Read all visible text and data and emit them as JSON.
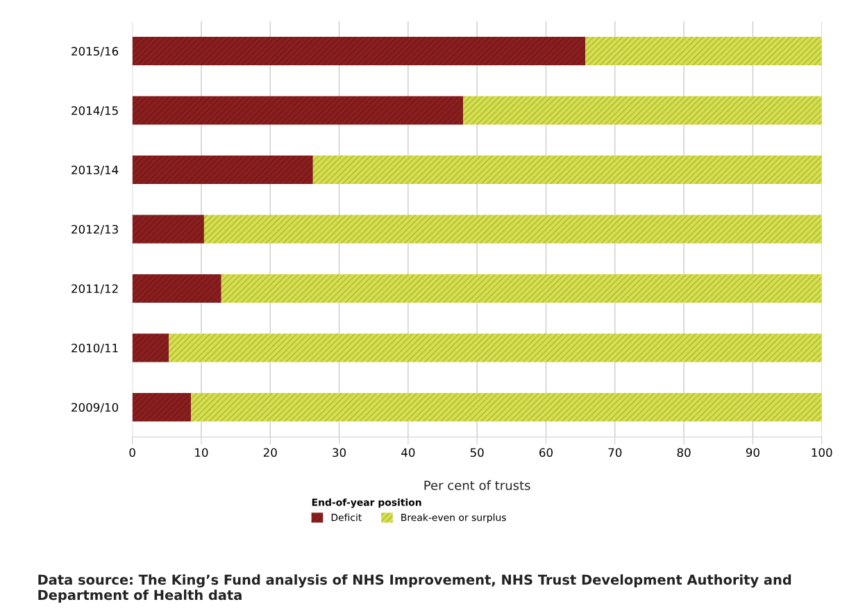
{
  "chart_data": {
    "type": "bar",
    "orientation": "horizontal",
    "stacked": true,
    "categories": [
      "2015/16",
      "2014/15",
      "2013/14",
      "2012/13",
      "2011/12",
      "2010/11",
      "2009/10"
    ],
    "series": [
      {
        "name": "Deficit",
        "color": "#8b1e1e",
        "values": [
          65.7,
          48.0,
          26.2,
          10.4,
          12.9,
          5.3,
          8.5
        ]
      },
      {
        "name": "Break-even or surplus",
        "color": "#d6e04c",
        "values": [
          34.3,
          52.0,
          73.8,
          89.6,
          87.1,
          94.7,
          91.5
        ]
      }
    ],
    "xlabel": "Per cent of trusts",
    "xlim": [
      0,
      100
    ],
    "xticks": [
      0,
      10,
      20,
      30,
      40,
      50,
      60,
      70,
      80,
      90,
      100
    ],
    "grid": "x",
    "legend": "bottom",
    "legend_title": "End-of-year position",
    "annotations": [
      "Data source: The King’s Fund analysis of NHS Improvement, NHS Trust Development Authority and Department of Health data"
    ]
  }
}
